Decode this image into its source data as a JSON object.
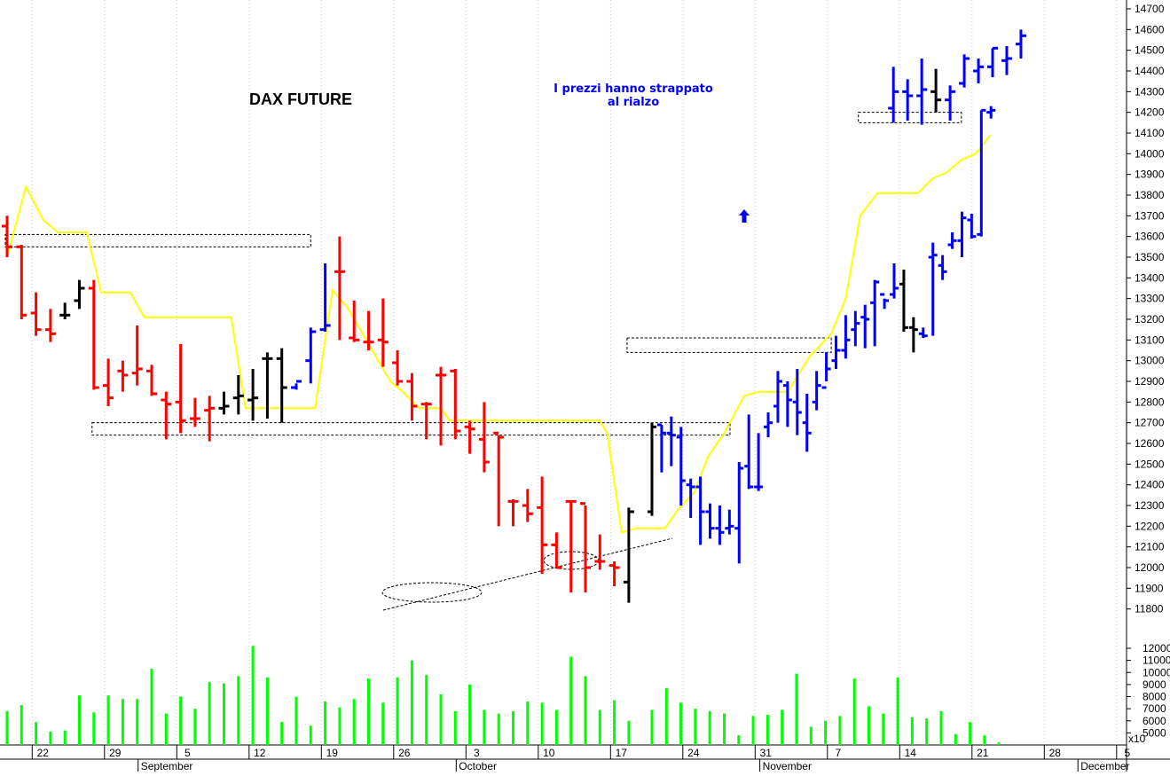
{
  "chart_data": {
    "type": "bar",
    "title": "DAX FUTURE",
    "annotation": [
      "I prezzi hanno strappato",
      "al rialzo"
    ],
    "price_axis": {
      "ylim": [
        11700,
        14700
      ],
      "ticks": [
        11800,
        11900,
        12000,
        12100,
        12200,
        12300,
        12400,
        12500,
        12600,
        12700,
        12800,
        12900,
        13000,
        13100,
        13200,
        13300,
        13400,
        13500,
        13600,
        13700,
        13800,
        13900,
        14000,
        14100,
        14200,
        14300,
        14400,
        14500,
        14600,
        14700
      ]
    },
    "volume_axis": {
      "ylim": [
        4000,
        12000
      ],
      "ticks": [
        5000,
        6000,
        7000,
        8000,
        9000,
        10000,
        11000,
        12000
      ],
      "multiplier_label": "x10"
    },
    "x_axis": {
      "day_labels": [
        {
          "label": "22",
          "x": 1
        },
        {
          "label": "29",
          "x": 6
        },
        {
          "label": "5",
          "x": 11
        },
        {
          "label": "12",
          "x": 16
        },
        {
          "label": "19",
          "x": 21
        },
        {
          "label": "26",
          "x": 26
        },
        {
          "label": "3",
          "x": 31
        },
        {
          "label": "10",
          "x": 36
        },
        {
          "label": "17",
          "x": 41
        },
        {
          "label": "24",
          "x": 46
        },
        {
          "label": "31",
          "x": 51
        },
        {
          "label": "7",
          "x": 56
        },
        {
          "label": "14",
          "x": 61
        },
        {
          "label": "21",
          "x": 66
        },
        {
          "label": "28",
          "x": 71
        },
        {
          "label": "5",
          "x": 76
        }
      ],
      "month_labels": [
        {
          "label": "September",
          "x": 9
        },
        {
          "label": "October",
          "x": 31
        },
        {
          "label": "November",
          "x": 52
        },
        {
          "label": "December",
          "x": 74
        }
      ]
    },
    "colors": {
      "down": "#ff0000",
      "up": "#0000ff",
      "neutral": "#000000",
      "trend_line": "#ffff00",
      "volume": "#00ff00"
    },
    "ohlc": [
      {
        "x": 0,
        "o": 13650,
        "h": 13700,
        "l": 13500,
        "c": 13550,
        "color": "down"
      },
      {
        "x": 1,
        "o": 13550,
        "h": 13560,
        "l": 13200,
        "c": 13220,
        "color": "down"
      },
      {
        "x": 2,
        "o": 13230,
        "h": 13330,
        "l": 13120,
        "c": 13150,
        "color": "down"
      },
      {
        "x": 3,
        "o": 13150,
        "h": 13250,
        "l": 13090,
        "c": 13130,
        "color": "down"
      },
      {
        "x": 4,
        "o": 13220,
        "h": 13280,
        "l": 13200,
        "c": 13220,
        "color": "neutral"
      },
      {
        "x": 5,
        "o": 13290,
        "h": 13390,
        "l": 13250,
        "c": 13350,
        "color": "neutral"
      },
      {
        "x": 6,
        "o": 13350,
        "h": 13390,
        "l": 12860,
        "c": 12870,
        "color": "down"
      },
      {
        "x": 7,
        "o": 12880,
        "h": 13010,
        "l": 12780,
        "c": 12820,
        "color": "down"
      },
      {
        "x": 8,
        "o": 12950,
        "h": 13000,
        "l": 12850,
        "c": 12930,
        "color": "down"
      },
      {
        "x": 9,
        "o": 12940,
        "h": 13170,
        "l": 12880,
        "c": 12960,
        "color": "down"
      },
      {
        "x": 10,
        "o": 12950,
        "h": 12980,
        "l": 12830,
        "c": 12840,
        "color": "down"
      },
      {
        "x": 11,
        "o": 12810,
        "h": 12850,
        "l": 12620,
        "c": 12790,
        "color": "down"
      },
      {
        "x": 12,
        "o": 12800,
        "h": 13080,
        "l": 12650,
        "c": 12710,
        "color": "down"
      },
      {
        "x": 13,
        "o": 12720,
        "h": 12820,
        "l": 12680,
        "c": 12720,
        "color": "down"
      },
      {
        "x": 14,
        "o": 12760,
        "h": 12830,
        "l": 12610,
        "c": 12770,
        "color": "down"
      },
      {
        "x": 15,
        "o": 12770,
        "h": 12850,
        "l": 12740,
        "c": 12780,
        "color": "neutral"
      },
      {
        "x": 16,
        "o": 12820,
        "h": 12930,
        "l": 12740,
        "c": 12830,
        "color": "neutral"
      },
      {
        "x": 17,
        "o": 12810,
        "h": 12960,
        "l": 12710,
        "c": 12820,
        "color": "neutral"
      },
      {
        "x": 18,
        "o": 13010,
        "h": 13040,
        "l": 12720,
        "c": 13010,
        "color": "neutral"
      },
      {
        "x": 19,
        "o": 13010,
        "h": 13060,
        "l": 12700,
        "c": 12870,
        "color": "neutral"
      },
      {
        "x": 20,
        "o": 12870,
        "h": 12890,
        "l": 12860,
        "c": 12900,
        "color": "up"
      },
      {
        "x": 21,
        "o": 13000,
        "h": 13160,
        "l": 12890,
        "c": 13140,
        "color": "up"
      },
      {
        "x": 22,
        "o": 13150,
        "h": 13470,
        "l": 13140,
        "c": 13170,
        "color": "up"
      },
      {
        "x": 23,
        "o": 13430,
        "h": 13600,
        "l": 13100,
        "c": 13430,
        "color": "down"
      },
      {
        "x": 24,
        "o": 13110,
        "h": 13290,
        "l": 13090,
        "c": 13100,
        "color": "down"
      },
      {
        "x": 25,
        "o": 13090,
        "h": 13240,
        "l": 13050,
        "c": 13090,
        "color": "down"
      },
      {
        "x": 26,
        "o": 13100,
        "h": 13300,
        "l": 12970,
        "c": 13090,
        "color": "down"
      },
      {
        "x": 27,
        "o": 12990,
        "h": 13050,
        "l": 12880,
        "c": 12900,
        "color": "down"
      },
      {
        "x": 28,
        "o": 12900,
        "h": 12940,
        "l": 12710,
        "c": 12780,
        "color": "down"
      },
      {
        "x": 29,
        "o": 12790,
        "h": 12800,
        "l": 12620,
        "c": 12790,
        "color": "down"
      },
      {
        "x": 30,
        "o": 12930,
        "h": 12970,
        "l": 12590,
        "c": 12930,
        "color": "down"
      },
      {
        "x": 31,
        "o": 12950,
        "h": 12960,
        "l": 12620,
        "c": 12660,
        "color": "down"
      },
      {
        "x": 32,
        "o": 12680,
        "h": 12710,
        "l": 12550,
        "c": 12670,
        "color": "down"
      },
      {
        "x": 33,
        "o": 12620,
        "h": 12800,
        "l": 12460,
        "c": 12510,
        "color": "down"
      },
      {
        "x": 34,
        "o": 12650,
        "h": 12640,
        "l": 12200,
        "c": 12630,
        "color": "down"
      },
      {
        "x": 35,
        "o": 12320,
        "h": 12330,
        "l": 12200,
        "c": 12320,
        "color": "down"
      },
      {
        "x": 36,
        "o": 12300,
        "h": 12380,
        "l": 12220,
        "c": 12260,
        "color": "down"
      },
      {
        "x": 37,
        "o": 12290,
        "h": 12440,
        "l": 11970,
        "c": 12110,
        "color": "down"
      },
      {
        "x": 38,
        "o": 12110,
        "h": 12170,
        "l": 12000,
        "c": 12000,
        "color": "down"
      },
      {
        "x": 39,
        "o": 12320,
        "h": 12320,
        "l": 11880,
        "c": 12320,
        "color": "down"
      },
      {
        "x": 40,
        "o": 12310,
        "h": 12300,
        "l": 11880,
        "c": 12000,
        "color": "down"
      },
      {
        "x": 41,
        "o": 12030,
        "h": 12160,
        "l": 11990,
        "c": 12030,
        "color": "down"
      },
      {
        "x": 42,
        "o": 12010,
        "h": 12030,
        "l": 11910,
        "c": 12000,
        "color": "down"
      },
      {
        "x": 43,
        "o": 11930,
        "h": 12290,
        "l": 11830,
        "c": 12270,
        "color": "neutral"
      }
    ],
    "volume": [
      {
        "x": 0,
        "v": 6800
      },
      {
        "x": 1,
        "v": 7300
      },
      {
        "x": 2,
        "v": 5900
      },
      {
        "x": 3,
        "v": 5100
      },
      {
        "x": 4,
        "v": 5200
      },
      {
        "x": 5,
        "v": 8100
      },
      {
        "x": 6,
        "v": 6700
      },
      {
        "x": 7,
        "v": 8100
      },
      {
        "x": 8,
        "v": 7800
      },
      {
        "x": 9,
        "v": 7800
      },
      {
        "x": 10,
        "v": 10300
      },
      {
        "x": 11,
        "v": 6600
      },
      {
        "x": 12,
        "v": 8000
      },
      {
        "x": 13,
        "v": 7000
      },
      {
        "x": 14,
        "v": 9200
      },
      {
        "x": 15,
        "v": 9100
      },
      {
        "x": 16,
        "v": 9700
      },
      {
        "x": 17,
        "v": 12200
      },
      {
        "x": 18,
        "v": 9600
      },
      {
        "x": 19,
        "v": 5900
      },
      {
        "x": 20,
        "v": 8000
      },
      {
        "x": 21,
        "v": 5600
      },
      {
        "x": 22,
        "v": 7600
      },
      {
        "x": 23,
        "v": 7100
      },
      {
        "x": 24,
        "v": 7800
      },
      {
        "x": 25,
        "v": 9500
      },
      {
        "x": 26,
        "v": 7500
      },
      {
        "x": 27,
        "v": 9600
      },
      {
        "x": 28,
        "v": 11000
      },
      {
        "x": 29,
        "v": 9800
      },
      {
        "x": 30,
        "v": 8200
      },
      {
        "x": 31,
        "v": 6800
      },
      {
        "x": 32,
        "v": 9000
      },
      {
        "x": 33,
        "v": 6900
      },
      {
        "x": 34,
        "v": 6600
      },
      {
        "x": 35,
        "v": 6800
      },
      {
        "x": 36,
        "v": 7600
      },
      {
        "x": 37,
        "v": 7500
      },
      {
        "x": 38,
        "v": 6900
      },
      {
        "x": 39,
        "v": 11300
      },
      {
        "x": 40,
        "v": 9700
      },
      {
        "x": 41,
        "v": 6900
      },
      {
        "x": 42,
        "v": 7700
      },
      {
        "x": 43,
        "v": 6000
      }
    ]
  }
}
